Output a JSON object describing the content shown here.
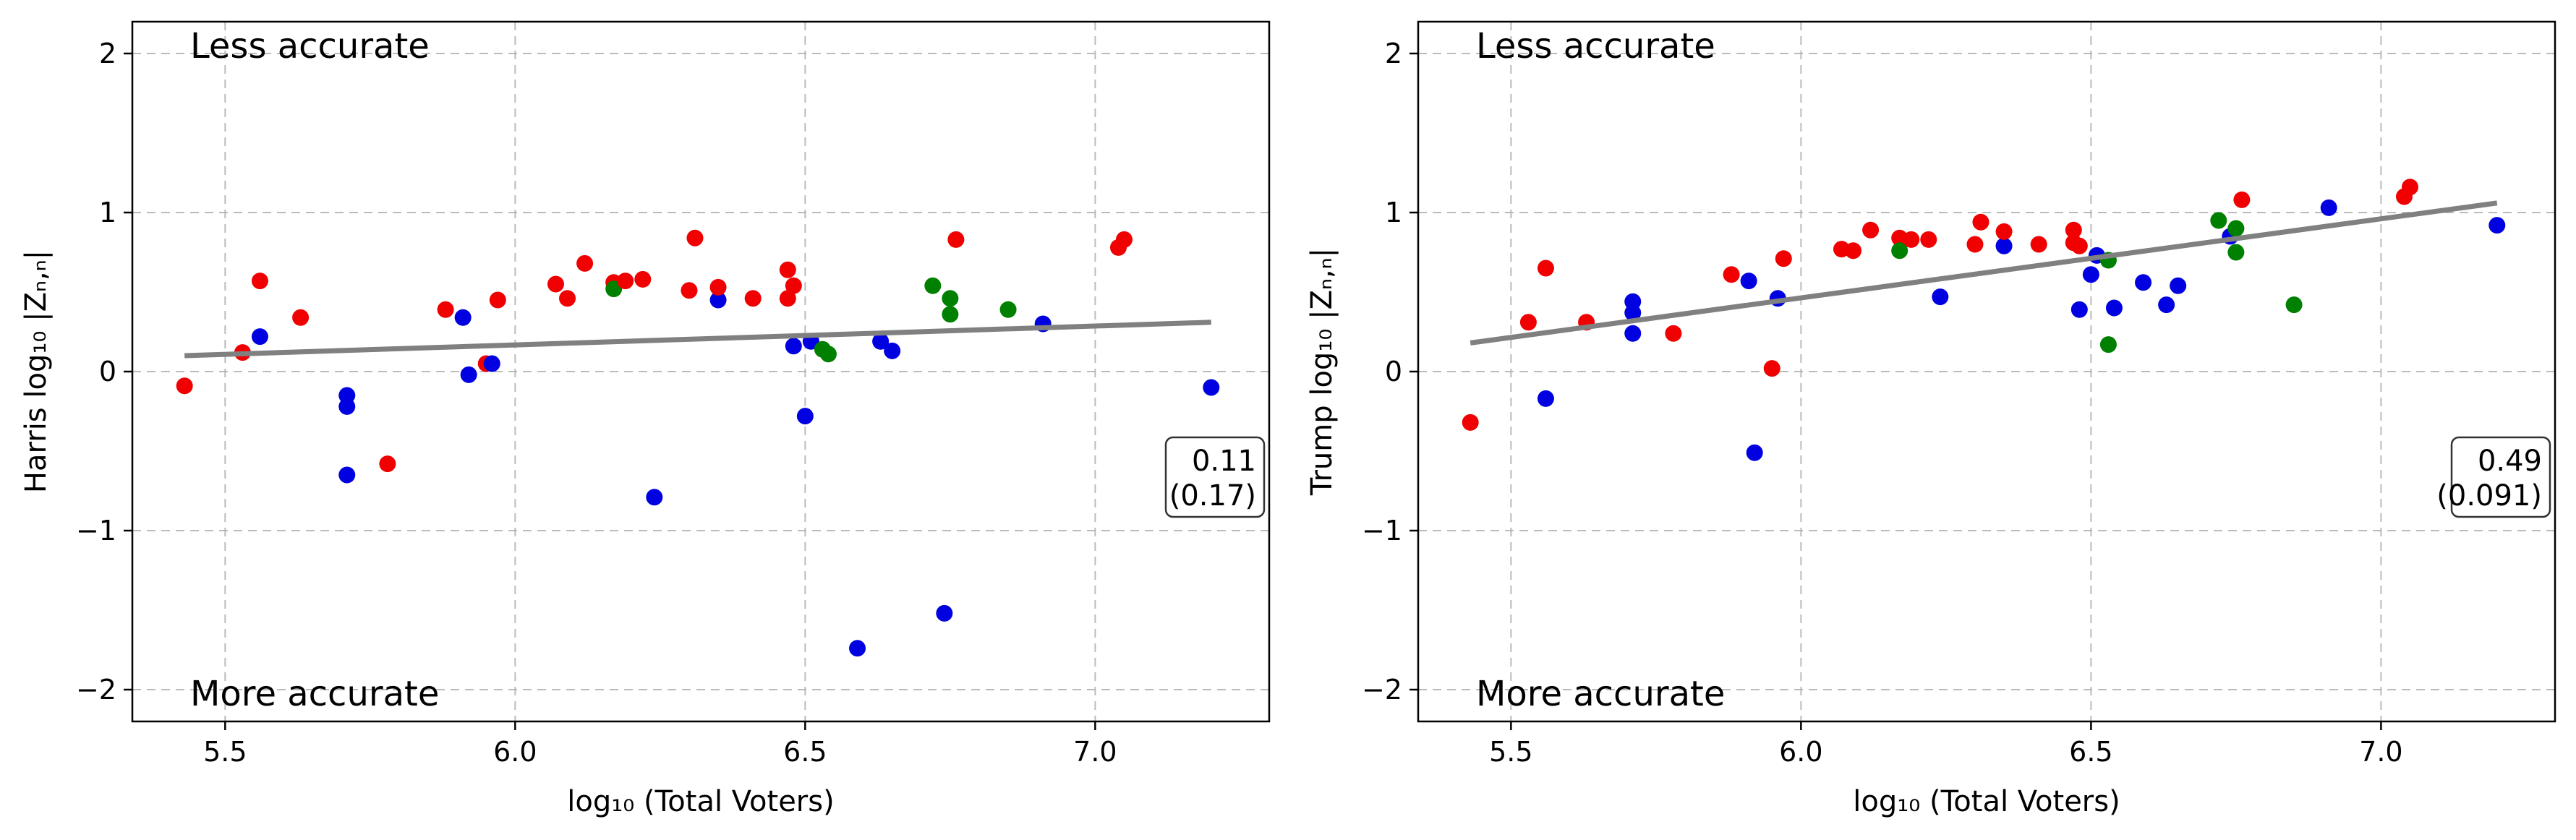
{
  "chart_data": [
    {
      "type": "scatter",
      "xlabel": "log₁₀ (Total Voters)",
      "ylabel": "Harris log₁₀ |Zₙ,ₙ|",
      "xlim": [
        5.34,
        7.3
      ],
      "ylim": [
        -2.2,
        2.2
      ],
      "xticks": [
        5.5,
        6.0,
        6.5,
        7.0
      ],
      "xtick_labels": [
        "5.5",
        "6.0",
        "6.5",
        "7.0"
      ],
      "yticks": [
        -2,
        -1,
        0,
        1,
        2
      ],
      "ytick_labels": [
        "−2",
        "−1",
        "0",
        "1",
        "2"
      ],
      "grid": true,
      "annotations": {
        "top": "Less accurate",
        "bottom": "More accurate"
      },
      "stat_box": {
        "line1": "0.11",
        "line2": "(0.17)"
      },
      "fit_line": {
        "x": [
          5.43,
          7.2
        ],
        "y": [
          0.1,
          0.31
        ],
        "color": "#808080"
      },
      "colors": {
        "red": "#f00000",
        "blue": "#0000e0",
        "green": "#008000"
      },
      "points": [
        {
          "x": 5.43,
          "y": -0.09,
          "c": "red"
        },
        {
          "x": 5.53,
          "y": 0.12,
          "c": "red"
        },
        {
          "x": 5.56,
          "y": 0.57,
          "c": "red"
        },
        {
          "x": 5.56,
          "y": 0.22,
          "c": "blue"
        },
        {
          "x": 5.63,
          "y": 0.34,
          "c": "red"
        },
        {
          "x": 5.71,
          "y": -0.15,
          "c": "blue"
        },
        {
          "x": 5.71,
          "y": -0.22,
          "c": "blue"
        },
        {
          "x": 5.71,
          "y": -0.65,
          "c": "blue"
        },
        {
          "x": 5.78,
          "y": -0.58,
          "c": "red"
        },
        {
          "x": 5.88,
          "y": 0.39,
          "c": "red"
        },
        {
          "x": 5.91,
          "y": 0.34,
          "c": "blue"
        },
        {
          "x": 5.92,
          "y": -0.02,
          "c": "blue"
        },
        {
          "x": 5.95,
          "y": 0.05,
          "c": "red"
        },
        {
          "x": 5.96,
          "y": 0.05,
          "c": "blue"
        },
        {
          "x": 5.97,
          "y": 0.45,
          "c": "red"
        },
        {
          "x": 6.07,
          "y": 0.55,
          "c": "red"
        },
        {
          "x": 6.09,
          "y": 0.46,
          "c": "red"
        },
        {
          "x": 6.12,
          "y": 0.68,
          "c": "red"
        },
        {
          "x": 6.17,
          "y": 0.56,
          "c": "red"
        },
        {
          "x": 6.17,
          "y": 0.52,
          "c": "green"
        },
        {
          "x": 6.19,
          "y": 0.57,
          "c": "red"
        },
        {
          "x": 6.22,
          "y": 0.58,
          "c": "red"
        },
        {
          "x": 6.24,
          "y": -0.79,
          "c": "blue"
        },
        {
          "x": 6.3,
          "y": 0.51,
          "c": "red"
        },
        {
          "x": 6.31,
          "y": 0.84,
          "c": "red"
        },
        {
          "x": 6.35,
          "y": 0.45,
          "c": "blue"
        },
        {
          "x": 6.35,
          "y": 0.53,
          "c": "red"
        },
        {
          "x": 6.41,
          "y": 0.46,
          "c": "red"
        },
        {
          "x": 6.47,
          "y": 0.46,
          "c": "red"
        },
        {
          "x": 6.47,
          "y": 0.64,
          "c": "red"
        },
        {
          "x": 6.48,
          "y": 0.54,
          "c": "red"
        },
        {
          "x": 6.48,
          "y": 0.16,
          "c": "blue"
        },
        {
          "x": 6.5,
          "y": -0.28,
          "c": "blue"
        },
        {
          "x": 6.51,
          "y": 0.19,
          "c": "blue"
        },
        {
          "x": 6.53,
          "y": 0.14,
          "c": "green"
        },
        {
          "x": 6.54,
          "y": 0.11,
          "c": "green"
        },
        {
          "x": 6.59,
          "y": -1.74,
          "c": "blue"
        },
        {
          "x": 6.63,
          "y": 0.19,
          "c": "blue"
        },
        {
          "x": 6.65,
          "y": 0.13,
          "c": "blue"
        },
        {
          "x": 6.72,
          "y": 0.54,
          "c": "green"
        },
        {
          "x": 6.74,
          "y": -1.52,
          "c": "blue"
        },
        {
          "x": 6.75,
          "y": 0.46,
          "c": "green"
        },
        {
          "x": 6.75,
          "y": 0.36,
          "c": "green"
        },
        {
          "x": 6.76,
          "y": 0.83,
          "c": "red"
        },
        {
          "x": 6.85,
          "y": 0.39,
          "c": "green"
        },
        {
          "x": 6.91,
          "y": 0.3,
          "c": "blue"
        },
        {
          "x": 7.04,
          "y": 0.78,
          "c": "red"
        },
        {
          "x": 7.05,
          "y": 0.83,
          "c": "red"
        },
        {
          "x": 7.2,
          "y": -0.1,
          "c": "blue"
        }
      ]
    },
    {
      "type": "scatter",
      "xlabel": "log₁₀ (Total Voters)",
      "ylabel": "Trump log₁₀ |Zₙ,ₙ|",
      "xlim": [
        5.34,
        7.3
      ],
      "ylim": [
        -2.2,
        2.2
      ],
      "xticks": [
        5.5,
        6.0,
        6.5,
        7.0
      ],
      "xtick_labels": [
        "5.5",
        "6.0",
        "6.5",
        "7.0"
      ],
      "yticks": [
        -2,
        -1,
        0,
        1,
        2
      ],
      "ytick_labels": [
        "−2",
        "−1",
        "0",
        "1",
        "2"
      ],
      "grid": true,
      "annotations": {
        "top": "Less accurate",
        "bottom": "More accurate"
      },
      "stat_box": {
        "line1": "0.49",
        "line2": "(0.091)"
      },
      "fit_line": {
        "x": [
          5.43,
          7.2
        ],
        "y": [
          0.18,
          1.06
        ],
        "color": "#808080"
      },
      "colors": {
        "red": "#f00000",
        "blue": "#0000e0",
        "green": "#008000"
      },
      "points": [
        {
          "x": 5.43,
          "y": -0.32,
          "c": "red"
        },
        {
          "x": 5.53,
          "y": 0.31,
          "c": "red"
        },
        {
          "x": 5.56,
          "y": 0.65,
          "c": "red"
        },
        {
          "x": 5.56,
          "y": -0.17,
          "c": "blue"
        },
        {
          "x": 5.63,
          "y": 0.31,
          "c": "red"
        },
        {
          "x": 5.71,
          "y": 0.44,
          "c": "blue"
        },
        {
          "x": 5.71,
          "y": 0.37,
          "c": "blue"
        },
        {
          "x": 5.71,
          "y": 0.24,
          "c": "blue"
        },
        {
          "x": 5.78,
          "y": 0.24,
          "c": "red"
        },
        {
          "x": 5.88,
          "y": 0.61,
          "c": "red"
        },
        {
          "x": 5.91,
          "y": 0.57,
          "c": "blue"
        },
        {
          "x": 5.92,
          "y": -0.51,
          "c": "blue"
        },
        {
          "x": 5.95,
          "y": 0.02,
          "c": "red"
        },
        {
          "x": 5.96,
          "y": 0.46,
          "c": "blue"
        },
        {
          "x": 5.97,
          "y": 0.71,
          "c": "red"
        },
        {
          "x": 6.07,
          "y": 0.77,
          "c": "red"
        },
        {
          "x": 6.09,
          "y": 0.76,
          "c": "red"
        },
        {
          "x": 6.12,
          "y": 0.89,
          "c": "red"
        },
        {
          "x": 6.17,
          "y": 0.84,
          "c": "red"
        },
        {
          "x": 6.17,
          "y": 0.76,
          "c": "green"
        },
        {
          "x": 6.19,
          "y": 0.83,
          "c": "red"
        },
        {
          "x": 6.22,
          "y": 0.83,
          "c": "red"
        },
        {
          "x": 6.24,
          "y": 0.47,
          "c": "blue"
        },
        {
          "x": 6.3,
          "y": 0.8,
          "c": "red"
        },
        {
          "x": 6.31,
          "y": 0.94,
          "c": "red"
        },
        {
          "x": 6.35,
          "y": 0.79,
          "c": "blue"
        },
        {
          "x": 6.35,
          "y": 0.88,
          "c": "red"
        },
        {
          "x": 6.41,
          "y": 0.8,
          "c": "red"
        },
        {
          "x": 6.47,
          "y": 0.81,
          "c": "red"
        },
        {
          "x": 6.47,
          "y": 0.89,
          "c": "red"
        },
        {
          "x": 6.48,
          "y": 0.79,
          "c": "red"
        },
        {
          "x": 6.48,
          "y": 0.39,
          "c": "blue"
        },
        {
          "x": 6.5,
          "y": 0.61,
          "c": "blue"
        },
        {
          "x": 6.51,
          "y": 0.73,
          "c": "blue"
        },
        {
          "x": 6.53,
          "y": 0.7,
          "c": "green"
        },
        {
          "x": 6.53,
          "y": 0.17,
          "c": "green"
        },
        {
          "x": 6.54,
          "y": 0.4,
          "c": "blue"
        },
        {
          "x": 6.59,
          "y": 0.56,
          "c": "blue"
        },
        {
          "x": 6.63,
          "y": 0.42,
          "c": "blue"
        },
        {
          "x": 6.65,
          "y": 0.54,
          "c": "blue"
        },
        {
          "x": 6.72,
          "y": 0.95,
          "c": "green"
        },
        {
          "x": 6.74,
          "y": 0.85,
          "c": "blue"
        },
        {
          "x": 6.75,
          "y": 0.9,
          "c": "green"
        },
        {
          "x": 6.75,
          "y": 0.75,
          "c": "green"
        },
        {
          "x": 6.76,
          "y": 1.08,
          "c": "red"
        },
        {
          "x": 6.85,
          "y": 0.42,
          "c": "green"
        },
        {
          "x": 6.91,
          "y": 1.03,
          "c": "blue"
        },
        {
          "x": 7.04,
          "y": 1.1,
          "c": "red"
        },
        {
          "x": 7.05,
          "y": 1.16,
          "c": "red"
        },
        {
          "x": 7.2,
          "y": 0.92,
          "c": "blue"
        }
      ]
    }
  ]
}
